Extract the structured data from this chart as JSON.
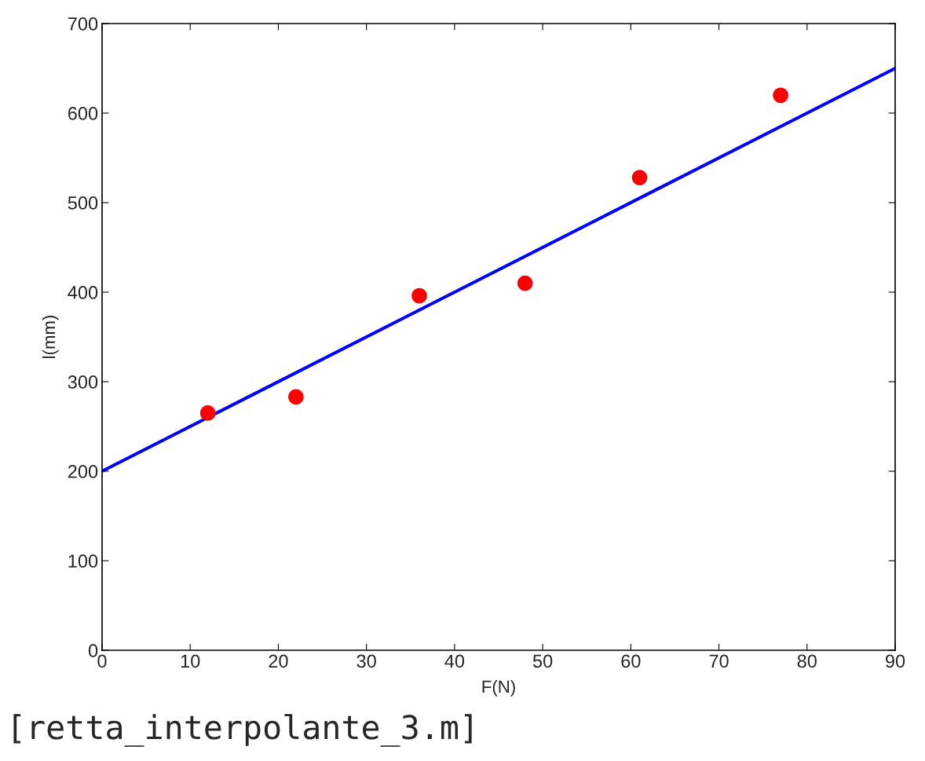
{
  "chart_data": {
    "type": "scatter",
    "xlabel": "F(N)",
    "ylabel": "l(mm)",
    "xlim": [
      0,
      90
    ],
    "ylim": [
      0,
      700
    ],
    "xticks": [
      0,
      10,
      20,
      30,
      40,
      50,
      60,
      70,
      80,
      90
    ],
    "yticks": [
      0,
      100,
      200,
      300,
      400,
      500,
      600,
      700
    ],
    "grid": false,
    "legend": false,
    "series": [
      {
        "color": "#ff0000",
        "marker": "circle",
        "x": [
          12,
          22,
          36,
          48,
          61,
          77
        ],
        "values": [
          265,
          283,
          396,
          410,
          528,
          620
        ]
      },
      {
        "type": "line",
        "color": "#0000ff",
        "line_style": "solid",
        "x": [
          0,
          90
        ],
        "values": [
          200,
          650
        ]
      }
    ],
    "annotations": [
      "[retta_interpolante_3.m]"
    ]
  }
}
